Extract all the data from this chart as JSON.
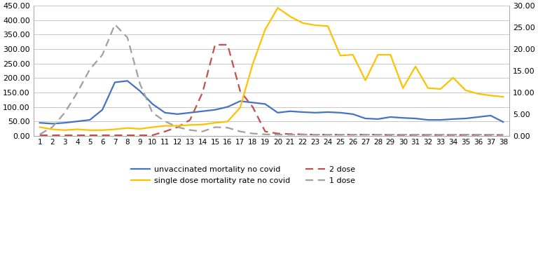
{
  "weeks": [
    1,
    2,
    3,
    4,
    5,
    6,
    7,
    8,
    9,
    10,
    11,
    12,
    13,
    14,
    15,
    16,
    17,
    18,
    19,
    20,
    21,
    22,
    23,
    24,
    25,
    26,
    27,
    28,
    29,
    30,
    31,
    32,
    33,
    34,
    35,
    36,
    37,
    38
  ],
  "unvacc_mortality": [
    45,
    42,
    45,
    50,
    55,
    90,
    185,
    190,
    155,
    110,
    80,
    75,
    80,
    85,
    90,
    100,
    120,
    115,
    110,
    80,
    85,
    82,
    80,
    82,
    80,
    75,
    60,
    58,
    65,
    62,
    60,
    55,
    55,
    58,
    60,
    65,
    70,
    48
  ],
  "single_dose_mortality": [
    2.0,
    1.5,
    1.3,
    1.5,
    1.3,
    1.3,
    1.5,
    1.8,
    1.6,
    2.0,
    2.3,
    2.3,
    2.5,
    2.6,
    3.0,
    3.3,
    6.5,
    16.5,
    24.5,
    29.5,
    27.5,
    26.0,
    25.5,
    25.3,
    18.5,
    18.7,
    12.8,
    18.7,
    18.7,
    11.0,
    16.0,
    11.0,
    10.8,
    13.4,
    10.5,
    9.7,
    9.3,
    9.0
  ],
  "two_dose_pct": [
    2,
    2,
    2,
    2,
    2,
    2,
    2,
    2,
    2,
    2,
    15,
    30,
    55,
    150,
    315,
    315,
    155,
    100,
    15,
    8,
    6,
    5,
    4,
    4,
    4,
    4,
    4,
    4,
    3,
    3,
    3,
    3,
    3,
    3,
    3,
    3,
    3,
    3
  ],
  "one_dose_pct": [
    5,
    30,
    80,
    150,
    230,
    280,
    385,
    340,
    180,
    80,
    50,
    30,
    20,
    15,
    30,
    28,
    15,
    8,
    5,
    4,
    4,
    4,
    4,
    4,
    4,
    4,
    4,
    4,
    4,
    4,
    4,
    4,
    4,
    4,
    4,
    4,
    4,
    4
  ],
  "left_ylim": [
    0,
    450
  ],
  "right_ylim": [
    0,
    30
  ],
  "left_yticks": [
    0,
    50,
    100,
    150,
    200,
    250,
    300,
    350,
    400,
    450
  ],
  "right_yticks": [
    0.0,
    5.0,
    10.0,
    15.0,
    20.0,
    25.0,
    30.0
  ],
  "color_unvacc": "#4472C4",
  "color_single": "#FFC000",
  "color_two_dose": "#C0504D",
  "color_one_dose": "#A0A0A0",
  "legend_labels": [
    "unvaccinated mortality no covid",
    "single dose mortality rate no covid",
    "2 dose",
    "1 dose"
  ],
  "bg_color": "#FFFFFF",
  "plot_bg_color": "#FFFFFF",
  "grid_color": "#C8C8C8"
}
